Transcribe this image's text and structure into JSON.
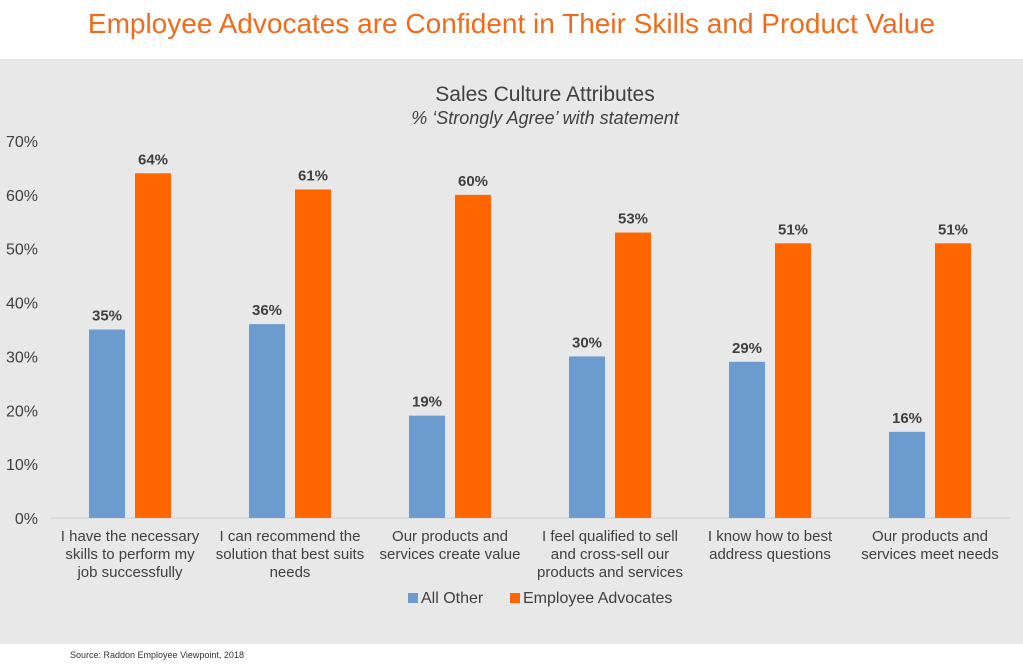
{
  "page": {
    "title": "Employee Advocates are Confident in Their Skills and Product Value",
    "source": "Source: Raddon Employee Viewpoint, 2018"
  },
  "colors": {
    "title": "#f26a1b",
    "series": [
      "#6b9bcf",
      "#ff6600"
    ],
    "background": "#e8e8e8"
  },
  "chart_data": {
    "type": "bar",
    "title": "Sales Culture Attributes",
    "subtitle": "% ‘Strongly Agree’ with statement",
    "categories": [
      [
        "I have the necessary",
        "skills to perform my",
        "job successfully"
      ],
      [
        "I can recommend the",
        "solution that best suits",
        "needs"
      ],
      [
        "Our products and",
        "services create value"
      ],
      [
        "I feel qualified to sell",
        "and cross-sell our",
        "products and services"
      ],
      [
        "I know how to best",
        "address questions"
      ],
      [
        "Our products and",
        "services meet needs"
      ]
    ],
    "series": [
      {
        "name": "All Other",
        "values": [
          35,
          36,
          19,
          30,
          29,
          16
        ]
      },
      {
        "name": "Employee Advocates",
        "values": [
          64,
          61,
          60,
          53,
          51,
          51
        ]
      }
    ],
    "value_format": "percent",
    "yticks": [
      "0%",
      "10%",
      "20%",
      "30%",
      "40%",
      "50%",
      "60%",
      "70%"
    ],
    "ylim": [
      0,
      70
    ],
    "grid": false,
    "legend": "bottom-center"
  }
}
